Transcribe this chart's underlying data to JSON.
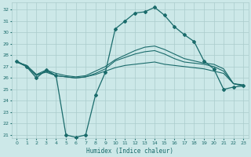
{
  "title": "",
  "xlabel": "Humidex (Indice chaleur)",
  "xlim": [
    -0.5,
    23.5
  ],
  "ylim": [
    20.7,
    32.6
  ],
  "yticks": [
    21,
    22,
    23,
    24,
    25,
    26,
    27,
    28,
    29,
    30,
    31,
    32
  ],
  "xticks": [
    0,
    1,
    2,
    3,
    4,
    5,
    6,
    7,
    8,
    9,
    10,
    11,
    12,
    13,
    14,
    15,
    16,
    17,
    18,
    19,
    20,
    21,
    22,
    23
  ],
  "bg_color": "#cce8e8",
  "line_color": "#1a6b6b",
  "grid_color": "#aacccc",
  "lines": [
    {
      "x": [
        0,
        1,
        2,
        3,
        4,
        5,
        6,
        7,
        8,
        9,
        10,
        11,
        12,
        13,
        14,
        15,
        16,
        17,
        18,
        19,
        20,
        21,
        22,
        23
      ],
      "y": [
        27.5,
        27.0,
        26.0,
        26.7,
        26.2,
        21.0,
        20.8,
        21.0,
        24.5,
        26.5,
        30.3,
        31.0,
        31.7,
        31.8,
        32.2,
        31.5,
        30.5,
        29.8,
        29.2,
        27.5,
        26.8,
        25.0,
        25.2,
        25.3
      ],
      "marker": "D",
      "markersize": 2.0,
      "linewidth": 0.9
    },
    {
      "x": [
        0,
        1,
        2,
        3,
        4,
        5,
        6,
        7,
        8,
        9,
        10,
        11,
        12,
        13,
        14,
        15,
        16,
        17,
        18,
        19,
        20,
        21,
        22,
        23
      ],
      "y": [
        27.4,
        27.1,
        26.3,
        26.5,
        26.2,
        26.1,
        26.0,
        26.1,
        26.3,
        26.6,
        26.9,
        27.1,
        27.2,
        27.3,
        27.4,
        27.2,
        27.1,
        27.0,
        26.9,
        26.8,
        26.6,
        26.4,
        25.5,
        25.3
      ],
      "marker": null,
      "markersize": 0,
      "linewidth": 0.8
    },
    {
      "x": [
        0,
        1,
        2,
        3,
        4,
        5,
        6,
        7,
        8,
        9,
        10,
        11,
        12,
        13,
        14,
        15,
        16,
        17,
        18,
        19,
        20,
        21,
        22,
        23
      ],
      "y": [
        27.4,
        27.1,
        26.3,
        26.7,
        26.4,
        26.2,
        26.1,
        26.2,
        26.6,
        27.0,
        27.6,
        28.0,
        28.4,
        28.7,
        28.8,
        28.5,
        28.1,
        27.7,
        27.5,
        27.3,
        27.2,
        26.8,
        25.5,
        25.4
      ],
      "marker": null,
      "markersize": 0,
      "linewidth": 0.8
    },
    {
      "x": [
        0,
        1,
        2,
        3,
        4,
        5,
        6,
        7,
        8,
        9,
        10,
        11,
        12,
        13,
        14,
        15,
        16,
        17,
        18,
        19,
        20,
        21,
        22,
        23
      ],
      "y": [
        27.4,
        27.0,
        26.2,
        26.6,
        26.2,
        26.1,
        26.0,
        26.1,
        26.4,
        26.8,
        27.5,
        27.8,
        28.1,
        28.3,
        28.4,
        28.1,
        27.7,
        27.4,
        27.3,
        27.2,
        27.0,
        26.6,
        25.5,
        25.3
      ],
      "marker": null,
      "markersize": 0,
      "linewidth": 0.8
    }
  ]
}
